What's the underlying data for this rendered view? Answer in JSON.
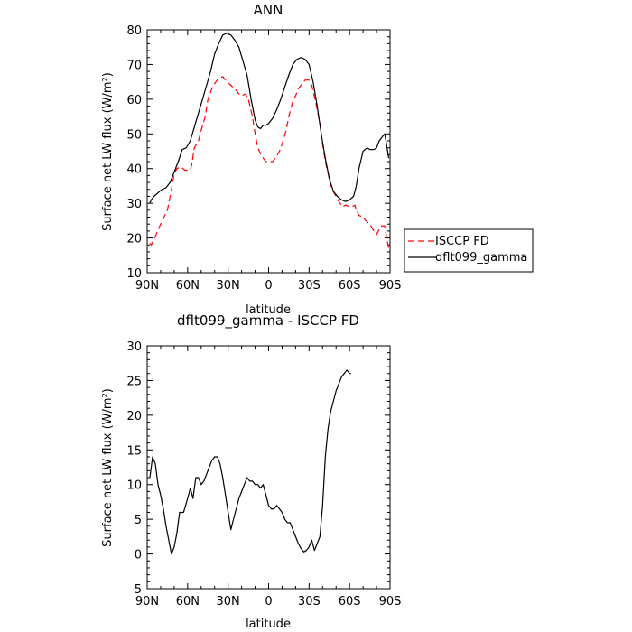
{
  "chart_data": [
    {
      "type": "line",
      "title": "ANN",
      "xlabel": "latitude",
      "ylabel": "Surface net LW flux (W/m²)",
      "xlim": [
        90,
        -90
      ],
      "ylim": [
        10,
        80
      ],
      "x_tick_labels": [
        "90N",
        "60N",
        "30N",
        "0",
        "30S",
        "60S",
        "90S"
      ],
      "x_tick_values": [
        90,
        60,
        30,
        0,
        -30,
        -60,
        -90
      ],
      "y_tick_values": [
        10,
        20,
        30,
        40,
        50,
        60,
        70,
        80
      ],
      "legend_position": "right",
      "series": [
        {
          "name": "ISCCP FD",
          "color": "#ff0000",
          "dash": "dashed",
          "points": [
            [
              88,
              18.5
            ],
            [
              87,
              18
            ],
            [
              85,
              19.5
            ],
            [
              80,
              24
            ],
            [
              75,
              28
            ],
            [
              72,
              34
            ],
            [
              70,
              38.5
            ],
            [
              68,
              40
            ],
            [
              65,
              40.5
            ],
            [
              62,
              39.5
            ],
            [
              58,
              39.5
            ],
            [
              57,
              41
            ],
            [
              55,
              46
            ],
            [
              52,
              48
            ],
            [
              50,
              51
            ],
            [
              47,
              55
            ],
            [
              45,
              60
            ],
            [
              42,
              63
            ],
            [
              40,
              64.5
            ],
            [
              37,
              66
            ],
            [
              34,
              66.5
            ],
            [
              31,
              65
            ],
            [
              28,
              64
            ],
            [
              25,
              63
            ],
            [
              22,
              61.5
            ],
            [
              20,
              61
            ],
            [
              17,
              61.5
            ],
            [
              15,
              60
            ],
            [
              12,
              55
            ],
            [
              10,
              50
            ],
            [
              8,
              46
            ],
            [
              5,
              43.5
            ],
            [
              2,
              42
            ],
            [
              0,
              42
            ],
            [
              -3,
              42
            ],
            [
              -5,
              43
            ],
            [
              -8,
              45
            ],
            [
              -10,
              47
            ],
            [
              -13,
              51
            ],
            [
              -15,
              55
            ],
            [
              -18,
              59.5
            ],
            [
              -20,
              61
            ],
            [
              -22,
              63
            ],
            [
              -25,
              64.5
            ],
            [
              -27,
              65.5
            ],
            [
              -30,
              65.5
            ],
            [
              -32,
              64
            ],
            [
              -35,
              59
            ],
            [
              -38,
              53
            ],
            [
              -40,
              47
            ],
            [
              -42,
              42
            ],
            [
              -45,
              37
            ],
            [
              -47,
              34
            ],
            [
              -50,
              32
            ],
            [
              -52,
              30.5
            ],
            [
              -55,
              29
            ],
            [
              -57,
              29.5
            ],
            [
              -60,
              29
            ],
            [
              -62,
              29
            ],
            [
              -64,
              29.5
            ],
            [
              -65,
              28
            ],
            [
              -67,
              26.5
            ],
            [
              -70,
              26
            ],
            [
              -72,
              25
            ],
            [
              -75,
              24
            ],
            [
              -78,
              22
            ],
            [
              -80,
              21
            ],
            [
              -82,
              22.5
            ],
            [
              -84,
              23.5
            ],
            [
              -86,
              23.5
            ],
            [
              -88,
              19
            ],
            [
              -89,
              17
            ]
          ]
        },
        {
          "name": "dflt099_gamma",
          "color": "#000000",
          "dash": "solid",
          "points": [
            [
              88,
              30
            ],
            [
              87,
              31
            ],
            [
              85,
              32
            ],
            [
              82,
              33
            ],
            [
              79,
              34
            ],
            [
              76,
              34.5
            ],
            [
              73,
              36
            ],
            [
              70,
              39
            ],
            [
              67,
              42
            ],
            [
              64,
              45.5
            ],
            [
              61,
              46
            ],
            [
              58,
              48
            ],
            [
              55,
              52
            ],
            [
              52,
              56
            ],
            [
              49,
              60
            ],
            [
              46,
              64
            ],
            [
              43,
              68
            ],
            [
              40,
              73
            ],
            [
              37,
              76
            ],
            [
              34,
              78.5
            ],
            [
              31,
              79
            ],
            [
              28,
              78.5
            ],
            [
              25,
              77
            ],
            [
              22,
              75
            ],
            [
              19,
              71
            ],
            [
              16,
              67
            ],
            [
              13,
              60
            ],
            [
              10,
              54
            ],
            [
              8,
              52
            ],
            [
              6,
              51.5
            ],
            [
              4,
              52.5
            ],
            [
              2,
              52.5
            ],
            [
              0,
              53
            ],
            [
              -3,
              54.5
            ],
            [
              -6,
              57
            ],
            [
              -9,
              60
            ],
            [
              -12,
              63.5
            ],
            [
              -15,
              67
            ],
            [
              -18,
              70
            ],
            [
              -21,
              71.5
            ],
            [
              -24,
              72
            ],
            [
              -27,
              71.5
            ],
            [
              -30,
              70
            ],
            [
              -33,
              65
            ],
            [
              -36,
              58
            ],
            [
              -39,
              50
            ],
            [
              -42,
              43
            ],
            [
              -45,
              37
            ],
            [
              -48,
              33.5
            ],
            [
              -51,
              32
            ],
            [
              -54,
              31
            ],
            [
              -57,
              30.5
            ],
            [
              -60,
              31
            ],
            [
              -63,
              32
            ],
            [
              -65,
              35
            ],
            [
              -67,
              40
            ],
            [
              -70,
              45
            ],
            [
              -73,
              46
            ],
            [
              -75,
              45.5
            ],
            [
              -78,
              45.5
            ],
            [
              -80,
              46
            ],
            [
              -82,
              48
            ],
            [
              -84,
              49
            ],
            [
              -86,
              50
            ],
            [
              -87,
              48
            ],
            [
              -89,
              43
            ]
          ]
        }
      ]
    },
    {
      "type": "line",
      "title": "dflt099_gamma - ISCCP FD",
      "xlabel": "latitude",
      "ylabel": "Surface net LW flux (W/m²)",
      "xlim": [
        90,
        -90
      ],
      "ylim": [
        -5,
        30
      ],
      "x_tick_labels": [
        "90N",
        "60N",
        "30N",
        "0",
        "30S",
        "60S",
        "90S"
      ],
      "x_tick_values": [
        90,
        60,
        30,
        0,
        -30,
        -60,
        -90
      ],
      "y_tick_values": [
        -5,
        0,
        5,
        10,
        15,
        20,
        25,
        30
      ],
      "series": [
        {
          "name": "",
          "color": "#000000",
          "dash": "solid",
          "points": [
            [
              88,
              11
            ],
            [
              86,
              14
            ],
            [
              84,
              13
            ],
            [
              82,
              10
            ],
            [
              80,
              8.5
            ],
            [
              78,
              6.5
            ],
            [
              76,
              4
            ],
            [
              74,
              2
            ],
            [
              72,
              0
            ],
            [
              70,
              1
            ],
            [
              68,
              3
            ],
            [
              66,
              6
            ],
            [
              63,
              6
            ],
            [
              60,
              8
            ],
            [
              58,
              9.5
            ],
            [
              56,
              8
            ],
            [
              54,
              11
            ],
            [
              52,
              11
            ],
            [
              50,
              10
            ],
            [
              48,
              10.5
            ],
            [
              46,
              11.5
            ],
            [
              44,
              12.5
            ],
            [
              42,
              13.5
            ],
            [
              40,
              14
            ],
            [
              38,
              14
            ],
            [
              36,
              13
            ],
            [
              34,
              11
            ],
            [
              32,
              8.5
            ],
            [
              30,
              6
            ],
            [
              28,
              3.5
            ],
            [
              26,
              5
            ],
            [
              24,
              6.5
            ],
            [
              22,
              8
            ],
            [
              20,
              9
            ],
            [
              18,
              10
            ],
            [
              16,
              11
            ],
            [
              14,
              10.5
            ],
            [
              12,
              10.5
            ],
            [
              10,
              10
            ],
            [
              8,
              10
            ],
            [
              6,
              9.5
            ],
            [
              4,
              10
            ],
            [
              2,
              8.5
            ],
            [
              0,
              7
            ],
            [
              -2,
              6.5
            ],
            [
              -4,
              6.5
            ],
            [
              -6,
              7
            ],
            [
              -8,
              6.5
            ],
            [
              -10,
              6
            ],
            [
              -12,
              5
            ],
            [
              -14,
              4.5
            ],
            [
              -16,
              4.5
            ],
            [
              -18,
              3.5
            ],
            [
              -20,
              2.5
            ],
            [
              -22,
              1.5
            ],
            [
              -24,
              0.8
            ],
            [
              -26,
              0.3
            ],
            [
              -28,
              0.5
            ],
            [
              -30,
              1
            ],
            [
              -32,
              2
            ],
            [
              -34,
              0.5
            ],
            [
              -36,
              1.5
            ],
            [
              -38,
              2.5
            ],
            [
              -40,
              7
            ],
            [
              -42,
              14
            ],
            [
              -44,
              18
            ],
            [
              -46,
              20.5
            ],
            [
              -48,
              22
            ],
            [
              -50,
              23.5
            ],
            [
              -52,
              24.5
            ],
            [
              -54,
              25.5
            ],
            [
              -56,
              26
            ],
            [
              -58,
              26.5
            ],
            [
              -60,
              26
            ],
            [
              -61,
              26
            ]
          ]
        }
      ]
    }
  ]
}
